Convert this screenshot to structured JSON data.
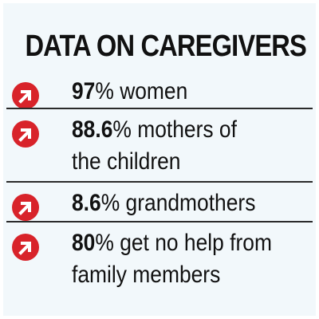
{
  "title": "DATA ON CAREGIVERS",
  "colors": {
    "background": "#f2f8fb",
    "icon": "#d8232a",
    "text": "#111111"
  },
  "items": [
    {
      "icon": "arrow-up-right-icon",
      "value": "97",
      "unit": "%",
      "line1": " women",
      "line2": ""
    },
    {
      "icon": "arrow-up-right-icon",
      "value": "88.6",
      "unit": "%",
      "line1": " mothers of",
      "line2": "the children"
    },
    {
      "icon": "arrow-up-right-icon",
      "value": "8.6",
      "unit": "%",
      "line1": " grandmothers",
      "line2": ""
    },
    {
      "icon": "arrow-up-right-icon",
      "value": "80",
      "unit": "%",
      "line1": " get no help from",
      "line2": "family members"
    }
  ]
}
